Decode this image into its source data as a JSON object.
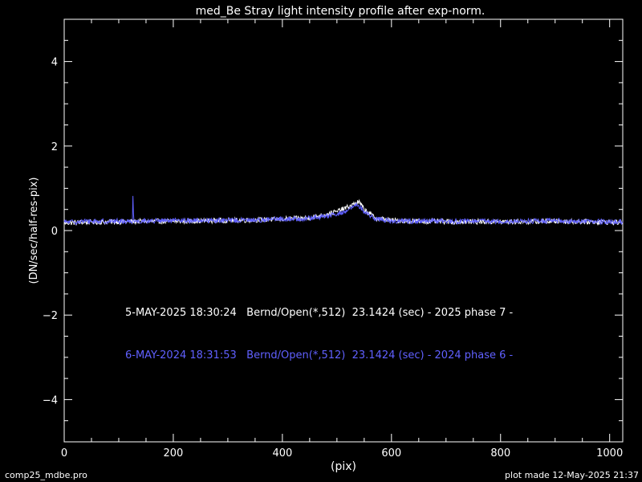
{
  "chart_data": {
    "type": "line",
    "title": "med_Be Stray light intensity profile after exp-norm.",
    "xlabel": "(pix)",
    "ylabel": "(DN/sec/half-res-pix)",
    "xlim": [
      0,
      1024
    ],
    "ylim": [
      -5,
      5
    ],
    "x_ticks": [
      0,
      200,
      400,
      600,
      800,
      1000
    ],
    "x_tick_labels": [
      "0",
      "200",
      "400",
      "600",
      "800",
      "1000"
    ],
    "y_ticks": [
      -4,
      -2,
      0,
      2,
      4
    ],
    "y_tick_labels": [
      "−4",
      "−2",
      "0",
      "2",
      "4"
    ],
    "grid": false,
    "series": [
      {
        "name": "5-MAY-2025 18:30:24   Bernd/Open(*,512)  23.1424 (sec) - 2025 phase 7 -",
        "color": "#ffffff",
        "x": [
          0,
          50,
          100,
          150,
          200,
          250,
          300,
          350,
          400,
          450,
          480,
          500,
          520,
          530,
          540,
          550,
          570,
          600,
          650,
          700,
          750,
          800,
          850,
          900,
          950,
          1000,
          1024
        ],
        "y": [
          0.18,
          0.2,
          0.21,
          0.22,
          0.22,
          0.23,
          0.24,
          0.25,
          0.27,
          0.3,
          0.38,
          0.45,
          0.55,
          0.62,
          0.68,
          0.5,
          0.3,
          0.24,
          0.22,
          0.21,
          0.21,
          0.21,
          0.21,
          0.22,
          0.21,
          0.2,
          0.19
        ]
      },
      {
        "name": "6-MAY-2024 18:31:53   Bernd/Open(*,512)  23.1424 (sec) - 2024 phase 6 -",
        "color": "#6060ff",
        "x": [
          0,
          50,
          100,
          125,
          126,
          127,
          128,
          150,
          200,
          250,
          300,
          350,
          400,
          450,
          480,
          500,
          520,
          530,
          540,
          550,
          570,
          600,
          650,
          700,
          750,
          800,
          850,
          900,
          950,
          1000,
          1024
        ],
        "y": [
          0.2,
          0.22,
          0.22,
          0.22,
          0.82,
          0.4,
          0.22,
          0.23,
          0.23,
          0.24,
          0.24,
          0.25,
          0.27,
          0.29,
          0.34,
          0.38,
          0.48,
          0.56,
          0.6,
          0.45,
          0.28,
          0.23,
          0.22,
          0.22,
          0.22,
          0.22,
          0.22,
          0.23,
          0.22,
          0.21,
          0.21
        ]
      }
    ]
  },
  "footer": {
    "left": "comp25_mdbe.pro",
    "right": "plot made 12-May-2025 21:37"
  }
}
